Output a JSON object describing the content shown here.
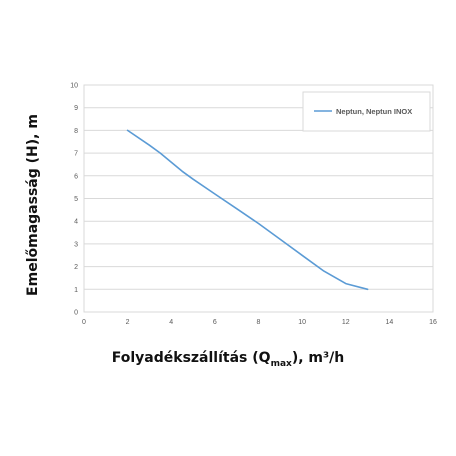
{
  "chart_data": {
    "type": "line",
    "xlabel": {
      "main": "Folyadékszállítás (Q",
      "sub": "max",
      "tail": "), m³/h"
    },
    "ylabel": "Emelőmagasság (H), m",
    "xlim": [
      0,
      16
    ],
    "ylim": [
      0,
      10
    ],
    "xticks": [
      0,
      2,
      4,
      6,
      8,
      10,
      12,
      14,
      16
    ],
    "yticks": [
      0,
      1,
      2,
      3,
      4,
      5,
      6,
      7,
      8,
      9,
      10
    ],
    "grid": {
      "horizontal": true,
      "vertical": false
    },
    "legend_position": "top-right",
    "series": [
      {
        "name": "Neptun, Neptun INOX",
        "color": "#5b9bd5",
        "x": [
          2,
          3,
          3.5,
          4,
          4.5,
          5,
          6,
          7,
          8,
          9,
          10,
          11,
          12,
          13
        ],
        "y": [
          8.0,
          7.35,
          7.0,
          6.6,
          6.2,
          5.85,
          5.2,
          4.55,
          3.9,
          3.2,
          2.5,
          1.8,
          1.25,
          1.0
        ]
      }
    ]
  }
}
